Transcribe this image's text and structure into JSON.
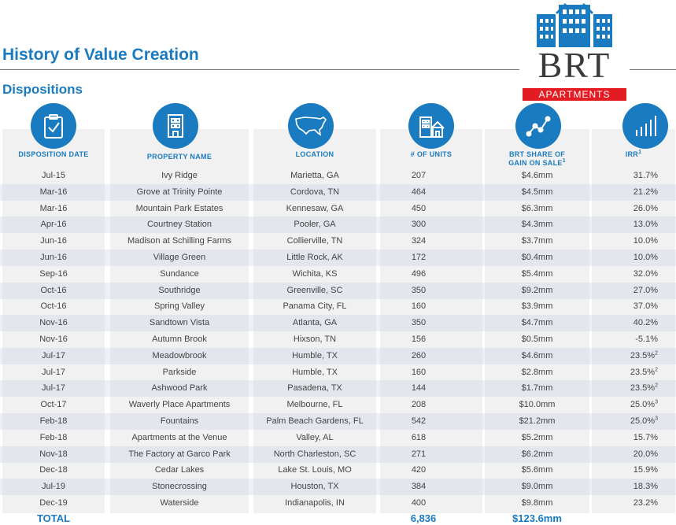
{
  "title": "History of Value Creation",
  "subtitle": "Dispositions",
  "logo": {
    "main": "BRT",
    "band": "APARTMENTS"
  },
  "headers": {
    "date": "DISPOSITION DATE",
    "name": "PROPERTY NAME",
    "location": "LOCATION",
    "units": "# OF UNITS",
    "gain_line1": "BRT SHARE OF",
    "gain_line2": "GAIN ON SALE",
    "gain_sup": "1",
    "irr": "IRR",
    "irr_sup": "1"
  },
  "rows": [
    {
      "date": "Jul-15",
      "name": "Ivy Ridge",
      "location": "Marietta, GA",
      "units": "207",
      "gain": "$4.6mm",
      "irr": "31.7%",
      "sup": ""
    },
    {
      "date": "Mar-16",
      "name": "Grove at Trinity Pointe",
      "location": "Cordova, TN",
      "units": "464",
      "gain": "$4.5mm",
      "irr": "21.2%",
      "sup": ""
    },
    {
      "date": "Mar-16",
      "name": "Mountain Park Estates",
      "location": "Kennesaw, GA",
      "units": "450",
      "gain": "$6.3mm",
      "irr": "26.0%",
      "sup": ""
    },
    {
      "date": "Apr-16",
      "name": "Courtney Station",
      "location": "Pooler, GA",
      "units": "300",
      "gain": "$4.3mm",
      "irr": "13.0%",
      "sup": ""
    },
    {
      "date": "Jun-16",
      "name": "Madison at Schilling Farms",
      "location": "Collierville, TN",
      "units": "324",
      "gain": "$3.7mm",
      "irr": "10.0%",
      "sup": ""
    },
    {
      "date": "Jun-16",
      "name": "Village Green",
      "location": "Little Rock, AK",
      "units": "172",
      "gain": "$0.4mm",
      "irr": "10.0%",
      "sup": ""
    },
    {
      "date": "Sep-16",
      "name": "Sundance",
      "location": "Wichita, KS",
      "units": "496",
      "gain": "$5.4mm",
      "irr": "32.0%",
      "sup": ""
    },
    {
      "date": "Oct-16",
      "name": "Southridge",
      "location": "Greenville, SC",
      "units": "350",
      "gain": "$9.2mm",
      "irr": "27.0%",
      "sup": ""
    },
    {
      "date": "Oct-16",
      "name": "Spring Valley",
      "location": "Panama City, FL",
      "units": "160",
      "gain": "$3.9mm",
      "irr": "37.0%",
      "sup": ""
    },
    {
      "date": "Nov-16",
      "name": "Sandtown Vista",
      "location": "Atlanta, GA",
      "units": "350",
      "gain": "$4.7mm",
      "irr": "40.2%",
      "sup": ""
    },
    {
      "date": "Nov-16",
      "name": "Autumn Brook",
      "location": "Hixson, TN",
      "units": "156",
      "gain": "$0.5mm",
      "irr": "-5.1%",
      "sup": ""
    },
    {
      "date": "Jul-17",
      "name": "Meadowbrook",
      "location": "Humble, TX",
      "units": "260",
      "gain": "$4.6mm",
      "irr": "23.5%",
      "sup": "2"
    },
    {
      "date": "Jul-17",
      "name": "Parkside",
      "location": "Humble, TX",
      "units": "160",
      "gain": "$2.8mm",
      "irr": "23.5%",
      "sup": "2"
    },
    {
      "date": "Jul-17",
      "name": "Ashwood Park",
      "location": "Pasadena, TX",
      "units": "144",
      "gain": "$1.7mm",
      "irr": "23.5%",
      "sup": "2"
    },
    {
      "date": "Oct-17",
      "name": "Waverly Place Apartments",
      "location": "Melbourne, FL",
      "units": "208",
      "gain": "$10.0mm",
      "irr": "25.0%",
      "sup": "3"
    },
    {
      "date": "Feb-18",
      "name": "Fountains",
      "location": "Palm Beach Gardens, FL",
      "units": "542",
      "gain": "$21.2mm",
      "irr": "25.0%",
      "sup": "3"
    },
    {
      "date": "Feb-18",
      "name": "Apartments at the Venue",
      "location": "Valley, AL",
      "units": "618",
      "gain": "$5.2mm",
      "irr": "15.7%",
      "sup": ""
    },
    {
      "date": "Nov-18",
      "name": "The Factory at Garco Park",
      "location": "North Charleston, SC",
      "units": "271",
      "gain": "$6.2mm",
      "irr": "20.0%",
      "sup": ""
    },
    {
      "date": "Dec-18",
      "name": "Cedar Lakes",
      "location": "Lake St. Louis, MO",
      "units": "420",
      "gain": "$5.6mm",
      "irr": "15.9%",
      "sup": ""
    },
    {
      "date": "Jul-19",
      "name": "Stonecrossing",
      "location": "Houston, TX",
      "units": "384",
      "gain": "$9.0mm",
      "irr": "18.3%",
      "sup": ""
    },
    {
      "date": "Dec-19",
      "name": "Waterside",
      "location": "Indianapolis, IN",
      "units": "400",
      "gain": "$9.8mm",
      "irr": "23.2%",
      "sup": ""
    }
  ],
  "totals": {
    "label": "TOTAL",
    "units": "6,836",
    "gain": "$123.6mm"
  },
  "icons": [
    "clipboard-check-icon",
    "building-icon",
    "us-map-icon",
    "houses-icon",
    "line-chart-icon",
    "bar-chart-icon"
  ],
  "colors": {
    "accent": "#1b7bc0",
    "logo_red": "#e31b23",
    "column_bg": "#f1f1f2"
  }
}
